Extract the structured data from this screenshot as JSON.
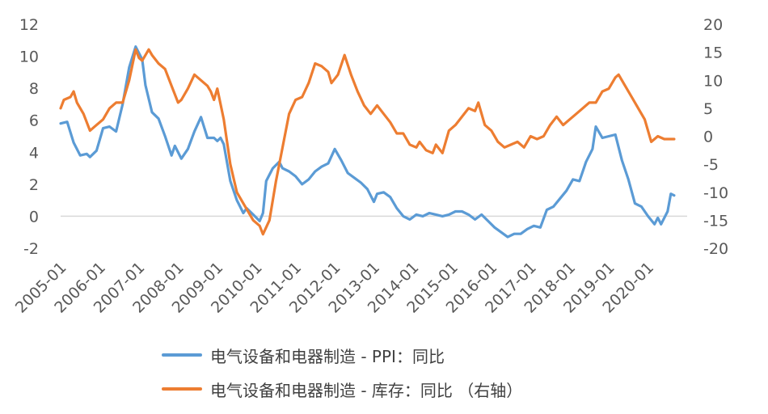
{
  "chart_data": {
    "type": "line",
    "title": "",
    "xlabel": "",
    "ylabel_left": "",
    "ylabel_right": "",
    "x_ticks": [
      "2005-01",
      "2006-01",
      "2007-01",
      "2008-01",
      "2009-01",
      "2010-01",
      "2011-01",
      "2012-01",
      "2013-01",
      "2014-01",
      "2015-01",
      "2016-01",
      "2017-01",
      "2018-01",
      "2019-01",
      "2020-01"
    ],
    "y_left": {
      "range": [
        -2,
        12
      ],
      "ticks": [
        "-2",
        "0",
        "2",
        "4",
        "6",
        "8",
        "10",
        "12"
      ]
    },
    "y_right": {
      "range": [
        -20,
        20
      ],
      "ticks": [
        "-20",
        "-15",
        "-10",
        "-5",
        "0",
        "5",
        "10",
        "15",
        "20"
      ]
    },
    "grid": false,
    "zero_line": true,
    "legend_position": "bottom",
    "series": [
      {
        "name": "电气设备和电器制造 - PPI：同比",
        "axis": "left",
        "color": "#5B9BD5",
        "points": [
          [
            "2005-01",
            5.8
          ],
          [
            "2005-03",
            5.9
          ],
          [
            "2005-05",
            4.6
          ],
          [
            "2005-07",
            3.8
          ],
          [
            "2005-09",
            3.9
          ],
          [
            "2005-10",
            3.7
          ],
          [
            "2005-12",
            4.1
          ],
          [
            "2006-02",
            5.5
          ],
          [
            "2006-04",
            5.6
          ],
          [
            "2006-06",
            5.3
          ],
          [
            "2006-08",
            7.0
          ],
          [
            "2006-10",
            9.3
          ],
          [
            "2006-12",
            10.6
          ],
          [
            "2007-02",
            9.8
          ],
          [
            "2007-03",
            8.2
          ],
          [
            "2007-05",
            6.5
          ],
          [
            "2007-07",
            6.1
          ],
          [
            "2007-09",
            5.0
          ],
          [
            "2007-11",
            3.8
          ],
          [
            "2007-12",
            4.4
          ],
          [
            "2008-02",
            3.6
          ],
          [
            "2008-04",
            4.2
          ],
          [
            "2008-06",
            5.3
          ],
          [
            "2008-08",
            6.2
          ],
          [
            "2008-10",
            4.9
          ],
          [
            "2008-12",
            4.9
          ],
          [
            "2009-01",
            4.7
          ],
          [
            "2009-02",
            4.9
          ],
          [
            "2009-03",
            4.5
          ],
          [
            "2009-05",
            2.2
          ],
          [
            "2009-07",
            1.0
          ],
          [
            "2009-09",
            0.2
          ],
          [
            "2009-10",
            0.5
          ],
          [
            "2009-12",
            0.1
          ],
          [
            "2010-02",
            -0.3
          ],
          [
            "2010-03",
            0.2
          ],
          [
            "2010-04",
            2.2
          ],
          [
            "2010-06",
            3.0
          ],
          [
            "2010-08",
            3.4
          ],
          [
            "2010-09",
            3.0
          ],
          [
            "2010-11",
            2.8
          ],
          [
            "2011-01",
            2.5
          ],
          [
            "2011-03",
            2.0
          ],
          [
            "2011-05",
            2.3
          ],
          [
            "2011-07",
            2.8
          ],
          [
            "2011-09",
            3.1
          ],
          [
            "2011-11",
            3.3
          ],
          [
            "2012-01",
            4.2
          ],
          [
            "2012-03",
            3.5
          ],
          [
            "2012-05",
            2.7
          ],
          [
            "2012-07",
            2.4
          ],
          [
            "2012-09",
            2.1
          ],
          [
            "2012-11",
            1.7
          ],
          [
            "2013-01",
            0.9
          ],
          [
            "2013-02",
            1.4
          ],
          [
            "2013-04",
            1.5
          ],
          [
            "2013-06",
            1.2
          ],
          [
            "2013-08",
            0.5
          ],
          [
            "2013-10",
            0.0
          ],
          [
            "2013-12",
            -0.2
          ],
          [
            "2014-02",
            0.1
          ],
          [
            "2014-04",
            0.0
          ],
          [
            "2014-06",
            0.2
          ],
          [
            "2014-08",
            0.1
          ],
          [
            "2014-10",
            0.0
          ],
          [
            "2014-12",
            0.1
          ],
          [
            "2015-02",
            0.3
          ],
          [
            "2015-04",
            0.3
          ],
          [
            "2015-06",
            0.1
          ],
          [
            "2015-08",
            -0.2
          ],
          [
            "2015-10",
            0.1
          ],
          [
            "2015-12",
            -0.3
          ],
          [
            "2016-02",
            -0.7
          ],
          [
            "2016-04",
            -1.0
          ],
          [
            "2016-06",
            -1.3
          ],
          [
            "2016-08",
            -1.1
          ],
          [
            "2016-10",
            -1.1
          ],
          [
            "2016-12",
            -0.8
          ],
          [
            "2017-02",
            -0.6
          ],
          [
            "2017-04",
            -0.7
          ],
          [
            "2017-06",
            0.4
          ],
          [
            "2017-08",
            0.6
          ],
          [
            "2017-10",
            1.1
          ],
          [
            "2017-12",
            1.6
          ],
          [
            "2018-02",
            2.3
          ],
          [
            "2018-04",
            2.2
          ],
          [
            "2018-06",
            3.4
          ],
          [
            "2018-08",
            4.2
          ],
          [
            "2018-09",
            5.6
          ],
          [
            "2018-11",
            4.9
          ],
          [
            "2019-01",
            5.0
          ],
          [
            "2019-03",
            5.1
          ],
          [
            "2019-05",
            3.5
          ],
          [
            "2019-07",
            2.3
          ],
          [
            "2019-09",
            0.8
          ],
          [
            "2019-11",
            0.6
          ],
          [
            "2020-01",
            0.0
          ],
          [
            "2020-03",
            -0.5
          ],
          [
            "2020-04",
            -0.1
          ],
          [
            "2020-05",
            -0.5
          ],
          [
            "2020-07",
            0.3
          ],
          [
            "2020-08",
            1.4
          ],
          [
            "2020-09",
            1.3
          ]
        ]
      },
      {
        "name": "电气设备和电器制造 - 库存：同比 （右轴）",
        "axis": "right",
        "color": "#ED7D31",
        "points": [
          [
            "2005-01",
            5
          ],
          [
            "2005-02",
            6.5
          ],
          [
            "2005-04",
            7
          ],
          [
            "2005-05",
            8
          ],
          [
            "2005-06",
            6
          ],
          [
            "2005-08",
            4
          ],
          [
            "2005-10",
            1
          ],
          [
            "2005-12",
            2
          ],
          [
            "2006-02",
            3
          ],
          [
            "2006-04",
            5
          ],
          [
            "2006-06",
            6
          ],
          [
            "2006-08",
            6
          ],
          [
            "2006-10",
            10
          ],
          [
            "2006-12",
            15.5
          ],
          [
            "2007-01",
            14
          ],
          [
            "2007-02",
            13.5
          ],
          [
            "2007-04",
            15.5
          ],
          [
            "2007-05",
            14.5
          ],
          [
            "2007-07",
            13
          ],
          [
            "2007-09",
            12
          ],
          [
            "2007-11",
            9
          ],
          [
            "2008-01",
            6
          ],
          [
            "2008-02",
            6.5
          ],
          [
            "2008-04",
            8.5
          ],
          [
            "2008-06",
            11
          ],
          [
            "2008-08",
            10
          ],
          [
            "2008-10",
            9
          ],
          [
            "2008-11",
            8
          ],
          [
            "2008-12",
            6.5
          ],
          [
            "2009-01",
            8.5
          ],
          [
            "2009-03",
            3
          ],
          [
            "2009-05",
            -5
          ],
          [
            "2009-07",
            -10
          ],
          [
            "2009-09",
            -12
          ],
          [
            "2009-10",
            -13
          ],
          [
            "2009-12",
            -15
          ],
          [
            "2010-02",
            -16
          ],
          [
            "2010-03",
            -17.5
          ],
          [
            "2010-05",
            -15
          ],
          [
            "2010-07",
            -8
          ],
          [
            "2010-09",
            -2
          ],
          [
            "2010-11",
            4
          ],
          [
            "2011-01",
            6.5
          ],
          [
            "2011-03",
            7
          ],
          [
            "2011-05",
            9.5
          ],
          [
            "2011-07",
            13
          ],
          [
            "2011-09",
            12.5
          ],
          [
            "2011-11",
            11.5
          ],
          [
            "2011-12",
            9.5
          ],
          [
            "2012-02",
            11
          ],
          [
            "2012-04",
            14.5
          ],
          [
            "2012-06",
            11
          ],
          [
            "2012-08",
            8
          ],
          [
            "2012-10",
            5.5
          ],
          [
            "2012-12",
            4
          ],
          [
            "2013-02",
            5.5
          ],
          [
            "2013-04",
            4
          ],
          [
            "2013-06",
            2.5
          ],
          [
            "2013-08",
            0.5
          ],
          [
            "2013-10",
            0.5
          ],
          [
            "2013-12",
            -1.5
          ],
          [
            "2014-02",
            -2
          ],
          [
            "2014-03",
            -1
          ],
          [
            "2014-05",
            -2.5
          ],
          [
            "2014-07",
            -3
          ],
          [
            "2014-08",
            -1.5
          ],
          [
            "2014-10",
            -3
          ],
          [
            "2014-12",
            1
          ],
          [
            "2015-02",
            2
          ],
          [
            "2015-04",
            3.5
          ],
          [
            "2015-06",
            5
          ],
          [
            "2015-08",
            4.5
          ],
          [
            "2015-09",
            6
          ],
          [
            "2015-11",
            2
          ],
          [
            "2016-01",
            1
          ],
          [
            "2016-03",
            -1
          ],
          [
            "2016-05",
            -2
          ],
          [
            "2016-07",
            -1.5
          ],
          [
            "2016-09",
            -1
          ],
          [
            "2016-11",
            -2
          ],
          [
            "2017-01",
            0
          ],
          [
            "2017-03",
            -0.5
          ],
          [
            "2017-05",
            0
          ],
          [
            "2017-07",
            2
          ],
          [
            "2017-09",
            3.5
          ],
          [
            "2017-11",
            2
          ],
          [
            "2018-01",
            3
          ],
          [
            "2018-03",
            4
          ],
          [
            "2018-05",
            5
          ],
          [
            "2018-07",
            6
          ],
          [
            "2018-09",
            6
          ],
          [
            "2018-11",
            8
          ],
          [
            "2019-01",
            8.5
          ],
          [
            "2019-03",
            10.5
          ],
          [
            "2019-04",
            11
          ],
          [
            "2019-06",
            9
          ],
          [
            "2019-08",
            7
          ],
          [
            "2019-10",
            5
          ],
          [
            "2019-12",
            3
          ],
          [
            "2020-02",
            -1
          ],
          [
            "2020-04",
            0
          ],
          [
            "2020-06",
            -0.5
          ],
          [
            "2020-09",
            -0.5
          ]
        ]
      }
    ]
  }
}
